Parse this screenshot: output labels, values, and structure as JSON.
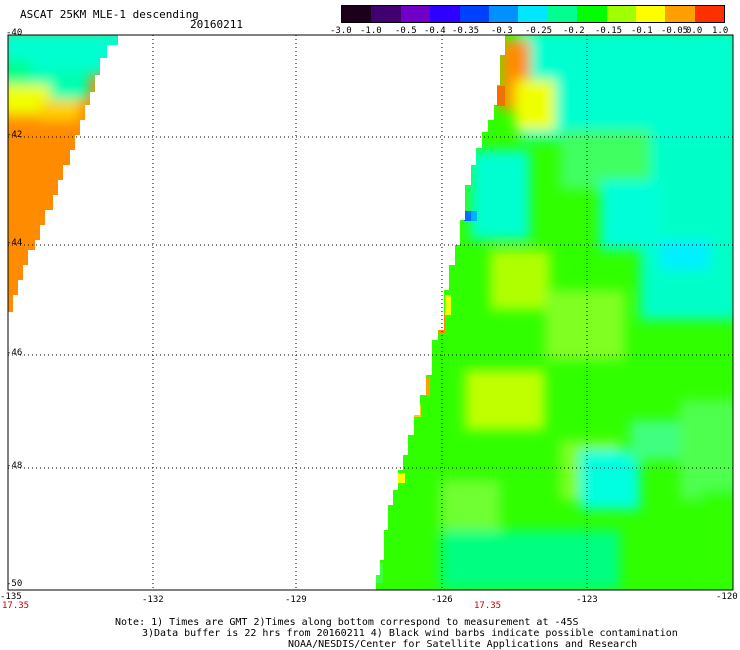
{
  "header": {
    "title": "ASCAT 25KM MLE-1 descending",
    "date": "20160211"
  },
  "colorbar": {
    "colors": [
      "#1a001a",
      "#400070",
      "#7000c8",
      "#3000ff",
      "#0040ff",
      "#0090ff",
      "#00e6ff",
      "#00ff90",
      "#00ff00",
      "#a0ff00",
      "#ffff00",
      "#ffa000",
      "#ff3000"
    ],
    "labels": [
      "-3.0",
      "-1.0",
      "-0.5",
      "-0.4",
      "-0.35",
      "-0.3",
      "-0.25",
      "-0.2",
      "-0.15",
      "-0.1",
      "-0.05",
      "0.0",
      "1.0"
    ]
  },
  "axes": {
    "lat_labels": [
      "-40",
      "-42",
      "-44",
      "-46",
      "-48",
      "-50"
    ],
    "lon_labels": [
      "-135",
      "-132",
      "-129",
      "-126",
      "-123",
      "-120"
    ],
    "time_labels": [
      "17.35",
      "17.35"
    ]
  },
  "footer": {
    "line1": "Note: 1) Times are GMT 2)Times along bottom correspond to measurement at -45S",
    "line2": "3)Data buffer is 22 hrs from 20160211 4) Black wind barbs indicate possible contamination",
    "line3": "NOAA/NESDIS/Center for Satellite Applications and Research"
  },
  "palette": {
    "orange": "#ff8c00",
    "dark_orange": "#f07000",
    "yellow": "#f0ff00",
    "yellow_green": "#b0ff00",
    "green": "#30ff00",
    "light_green": "#50ff40",
    "aqua_green": "#00ff90",
    "cyan": "#00ffe0",
    "blue": "#0070ff"
  }
}
